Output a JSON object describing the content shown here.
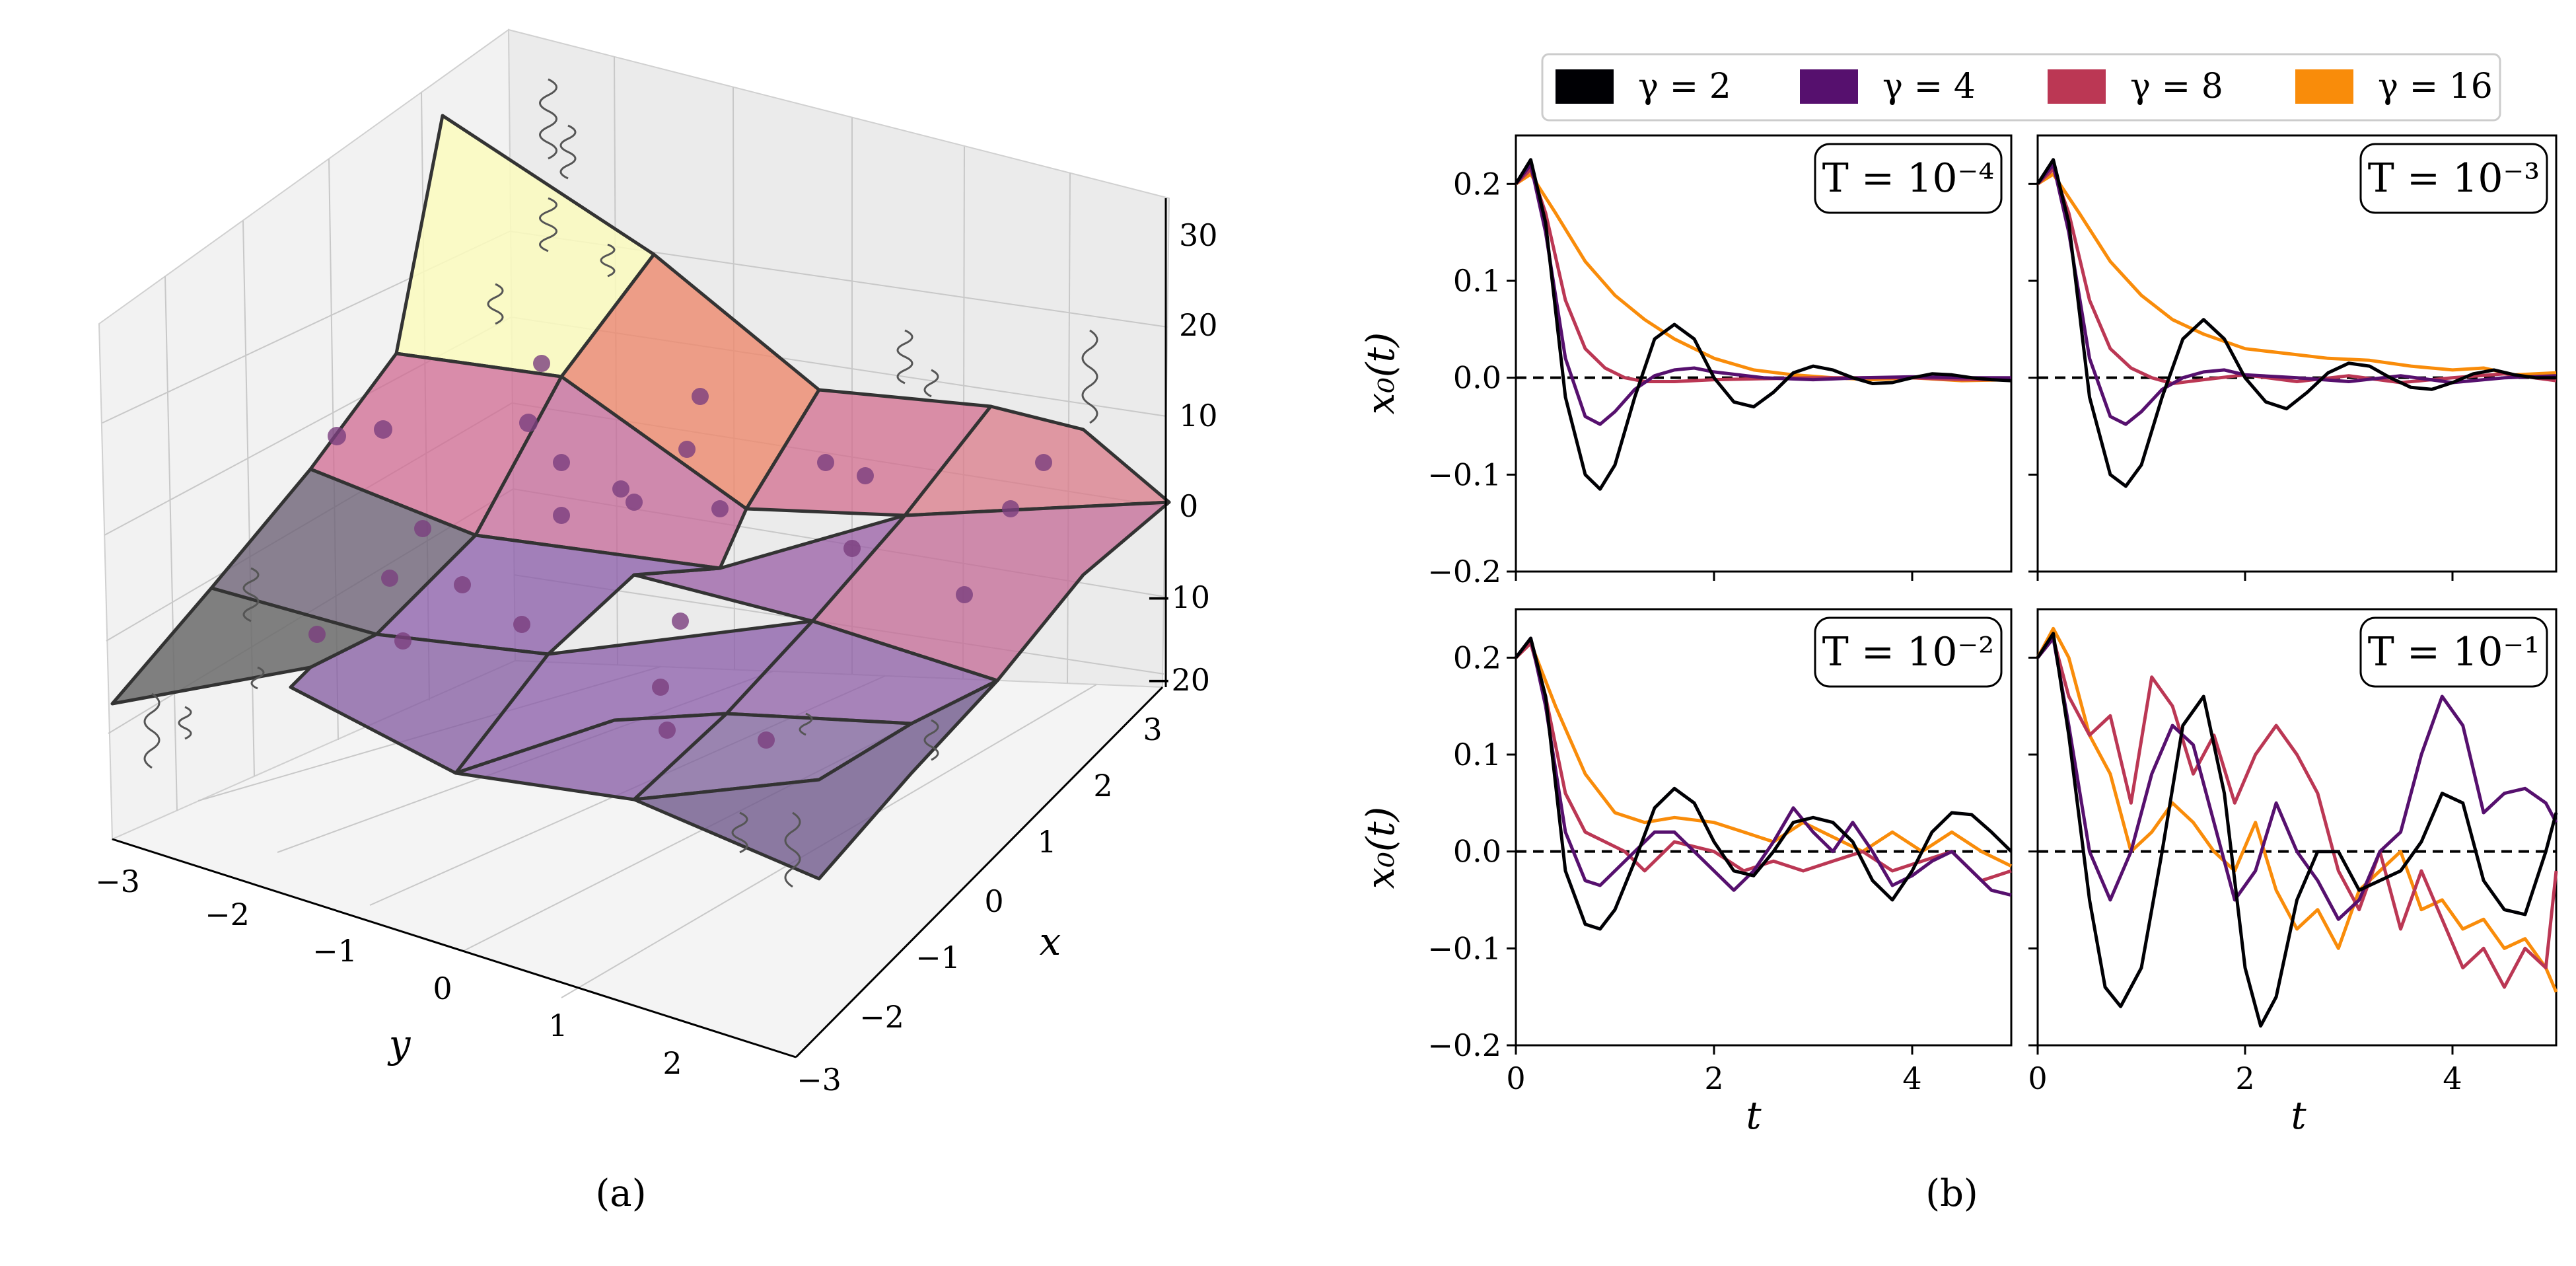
{
  "panel_a": {
    "caption": "(a)",
    "x_label": "x",
    "y_label": "y",
    "x_ticks": [
      "3",
      "2",
      "1",
      "0",
      "−1",
      "−2",
      "−3"
    ],
    "y_ticks": [
      "−3",
      "−2",
      "−1",
      "0",
      "1",
      "2"
    ],
    "z_ticks": [
      "30",
      "20",
      "10",
      "0",
      "−10",
      "−20"
    ],
    "surface_colors": {
      "high": "#fbfbbe",
      "upper": "#ee8a6e",
      "mid": "#d06a92",
      "low": "#8a5ba8",
      "lowest": "#6b6b6b"
    }
  },
  "panel_b": {
    "caption": "(b)",
    "legend": [
      {
        "label": "γ = 2",
        "color": "#000004"
      },
      {
        "label": "γ = 4",
        "color": "#56106e"
      },
      {
        "label": "γ = 8",
        "color": "#bb3754"
      },
      {
        "label": "γ = 16",
        "color": "#f98c0a"
      }
    ],
    "x_label": "t",
    "y_label": "x₀(t)",
    "x_ticks": [
      "0",
      "2",
      "4"
    ],
    "y_ticks": [
      "0.2",
      "0.1",
      "0.0",
      "−0.1",
      "−0.2"
    ]
  },
  "chart_data": [
    {
      "type": "surface3d",
      "xlabel": "x",
      "ylabel": "y",
      "xlim": [
        -3,
        3
      ],
      "ylim": [
        -3,
        3
      ],
      "zlim": [
        -20,
        30
      ],
      "grid": true
    },
    {
      "type": "line",
      "panel": "T = 10⁻⁴",
      "xlim": [
        0,
        5
      ],
      "ylim": [
        -0.2,
        0.25
      ],
      "reference_line": 0.0,
      "series": [
        {
          "name": "γ = 2",
          "x": [
            0,
            0.15,
            0.3,
            0.5,
            0.7,
            0.85,
            1.0,
            1.2,
            1.4,
            1.6,
            1.8,
            2.0,
            2.2,
            2.4,
            2.6,
            2.8,
            3.0,
            3.2,
            3.4,
            3.6,
            3.8,
            4.0,
            4.2,
            4.4,
            4.6,
            4.8,
            5.0
          ],
          "y": [
            0.2,
            0.225,
            0.16,
            -0.02,
            -0.1,
            -0.115,
            -0.09,
            -0.02,
            0.04,
            0.055,
            0.04,
            0.0,
            -0.025,
            -0.03,
            -0.015,
            0.005,
            0.012,
            0.008,
            0.0,
            -0.006,
            -0.005,
            0.0,
            0.004,
            0.003,
            0.0,
            -0.002,
            -0.003
          ]
        },
        {
          "name": "γ = 4",
          "x": [
            0,
            0.15,
            0.3,
            0.5,
            0.7,
            0.85,
            1.0,
            1.2,
            1.4,
            1.6,
            1.8,
            2.0,
            2.5,
            3.0,
            3.5,
            4.0,
            4.5,
            5.0
          ],
          "y": [
            0.2,
            0.22,
            0.15,
            0.02,
            -0.04,
            -0.048,
            -0.035,
            -0.012,
            0.002,
            0.008,
            0.01,
            0.006,
            0.0,
            -0.002,
            0.0,
            0.001,
            0.0,
            0.0
          ]
        },
        {
          "name": "γ = 8",
          "x": [
            0,
            0.15,
            0.3,
            0.5,
            0.7,
            0.9,
            1.1,
            1.3,
            1.6,
            2.0,
            2.5,
            3.0,
            3.5,
            4.0,
            4.5,
            5.0
          ],
          "y": [
            0.2,
            0.215,
            0.17,
            0.08,
            0.03,
            0.01,
            0.0,
            -0.004,
            -0.004,
            -0.002,
            -0.001,
            0.0,
            0.0,
            0.0,
            -0.002,
            -0.002
          ]
        },
        {
          "name": "γ = 16",
          "x": [
            0,
            0.15,
            0.4,
            0.7,
            1.0,
            1.3,
            1.6,
            2.0,
            2.4,
            2.8,
            3.2,
            3.6,
            4.0,
            4.5,
            5.0
          ],
          "y": [
            0.2,
            0.21,
            0.17,
            0.12,
            0.085,
            0.06,
            0.04,
            0.02,
            0.008,
            0.003,
            0.0,
            -0.002,
            0.0,
            -0.003,
            -0.002
          ]
        }
      ]
    },
    {
      "type": "line",
      "panel": "T = 10⁻³",
      "xlim": [
        0,
        5
      ],
      "ylim": [
        -0.2,
        0.25
      ],
      "reference_line": 0.0,
      "series": [
        {
          "name": "γ = 2",
          "x": [
            0,
            0.15,
            0.3,
            0.5,
            0.7,
            0.85,
            1.0,
            1.2,
            1.4,
            1.6,
            1.8,
            2.0,
            2.2,
            2.4,
            2.6,
            2.8,
            3.0,
            3.2,
            3.4,
            3.6,
            3.8,
            4.0,
            4.2,
            4.4,
            4.6,
            4.8,
            5.0
          ],
          "y": [
            0.2,
            0.225,
            0.16,
            -0.02,
            -0.1,
            -0.112,
            -0.09,
            -0.02,
            0.04,
            0.06,
            0.04,
            0.0,
            -0.025,
            -0.032,
            -0.015,
            0.005,
            0.015,
            0.012,
            0.0,
            -0.01,
            -0.012,
            -0.005,
            0.004,
            0.008,
            0.003,
            0.0,
            0.0
          ]
        },
        {
          "name": "γ = 4",
          "x": [
            0,
            0.15,
            0.3,
            0.5,
            0.7,
            0.85,
            1.0,
            1.2,
            1.4,
            1.6,
            1.8,
            2.0,
            2.5,
            3.0,
            3.5,
            4.0,
            4.5,
            5.0
          ],
          "y": [
            0.2,
            0.22,
            0.15,
            0.02,
            -0.04,
            -0.048,
            -0.035,
            -0.012,
            0.0,
            0.006,
            0.008,
            0.003,
            0.0,
            -0.004,
            0.002,
            -0.005,
            0.0,
            0.002
          ]
        },
        {
          "name": "γ = 8",
          "x": [
            0,
            0.15,
            0.3,
            0.5,
            0.7,
            0.9,
            1.1,
            1.3,
            1.6,
            2.0,
            2.5,
            3.0,
            3.5,
            4.0,
            4.5,
            5.0
          ],
          "y": [
            0.2,
            0.215,
            0.17,
            0.08,
            0.03,
            0.01,
            0.0,
            -0.006,
            -0.002,
            0.003,
            -0.004,
            0.002,
            -0.005,
            0.0,
            0.004,
            -0.003
          ]
        },
        {
          "name": "γ = 16",
          "x": [
            0,
            0.15,
            0.4,
            0.7,
            1.0,
            1.3,
            1.6,
            2.0,
            2.4,
            2.8,
            3.2,
            3.6,
            4.0,
            4.3,
            4.6,
            5.0
          ],
          "y": [
            0.2,
            0.21,
            0.17,
            0.12,
            0.085,
            0.06,
            0.045,
            0.03,
            0.025,
            0.02,
            0.018,
            0.012,
            0.008,
            0.01,
            0.003,
            0.005
          ]
        }
      ]
    },
    {
      "type": "line",
      "panel": "T = 10⁻²",
      "xlim": [
        0,
        5
      ],
      "ylim": [
        -0.2,
        0.25
      ],
      "reference_line": 0.0,
      "series": [
        {
          "name": "γ = 2",
          "x": [
            0,
            0.15,
            0.3,
            0.5,
            0.7,
            0.85,
            1.0,
            1.2,
            1.4,
            1.6,
            1.8,
            2.0,
            2.2,
            2.4,
            2.6,
            2.8,
            3.0,
            3.2,
            3.4,
            3.6,
            3.8,
            4.0,
            4.2,
            4.4,
            4.6,
            4.8,
            5.0
          ],
          "y": [
            0.2,
            0.22,
            0.16,
            -0.02,
            -0.075,
            -0.08,
            -0.06,
            -0.01,
            0.045,
            0.065,
            0.05,
            0.01,
            -0.02,
            -0.025,
            0.0,
            0.03,
            0.035,
            0.03,
            0.01,
            -0.03,
            -0.05,
            -0.02,
            0.02,
            0.04,
            0.038,
            0.02,
            0.0
          ]
        },
        {
          "name": "γ = 4",
          "x": [
            0,
            0.15,
            0.3,
            0.5,
            0.7,
            0.85,
            1.0,
            1.2,
            1.4,
            1.6,
            1.8,
            2.0,
            2.2,
            2.4,
            2.6,
            2.8,
            3.0,
            3.2,
            3.4,
            3.6,
            3.8,
            4.0,
            4.2,
            4.4,
            4.6,
            4.8,
            5.0
          ],
          "y": [
            0.2,
            0.22,
            0.15,
            0.02,
            -0.03,
            -0.035,
            -0.02,
            0.0,
            0.02,
            0.02,
            0.0,
            -0.02,
            -0.04,
            -0.02,
            0.01,
            0.045,
            0.02,
            0.0,
            0.03,
            0.0,
            -0.035,
            -0.025,
            -0.01,
            0.0,
            -0.02,
            -0.04,
            -0.045
          ]
        },
        {
          "name": "γ = 8",
          "x": [
            0,
            0.15,
            0.3,
            0.5,
            0.7,
            0.9,
            1.1,
            1.3,
            1.6,
            2.0,
            2.3,
            2.6,
            2.9,
            3.2,
            3.5,
            3.8,
            4.1,
            4.4,
            4.7,
            5.0
          ],
          "y": [
            0.2,
            0.215,
            0.16,
            0.06,
            0.02,
            0.01,
            0.0,
            -0.02,
            0.01,
            0.0,
            -0.02,
            -0.01,
            -0.02,
            -0.01,
            0.0,
            -0.02,
            -0.01,
            0.0,
            -0.03,
            -0.02
          ]
        },
        {
          "name": "γ = 16",
          "x": [
            0,
            0.15,
            0.4,
            0.7,
            1.0,
            1.3,
            1.6,
            2.0,
            2.3,
            2.6,
            2.9,
            3.2,
            3.5,
            3.8,
            4.1,
            4.4,
            4.7,
            5.0
          ],
          "y": [
            0.2,
            0.215,
            0.15,
            0.08,
            0.04,
            0.03,
            0.035,
            0.03,
            0.02,
            0.01,
            0.03,
            0.015,
            0.0,
            0.02,
            0.0,
            0.02,
            0.0,
            -0.015
          ]
        }
      ]
    },
    {
      "type": "line",
      "panel": "T = 10⁻¹",
      "xlim": [
        0,
        5
      ],
      "ylim": [
        -0.2,
        0.25
      ],
      "reference_line": 0.0,
      "series": [
        {
          "name": "γ = 2",
          "x": [
            0,
            0.15,
            0.3,
            0.5,
            0.65,
            0.8,
            1.0,
            1.2,
            1.4,
            1.6,
            1.8,
            2.0,
            2.15,
            2.3,
            2.5,
            2.7,
            2.9,
            3.1,
            3.3,
            3.5,
            3.7,
            3.9,
            4.1,
            4.3,
            4.5,
            4.7,
            4.9,
            5.0
          ],
          "y": [
            0.2,
            0.225,
            0.12,
            -0.05,
            -0.14,
            -0.16,
            -0.12,
            0.0,
            0.13,
            0.16,
            0.06,
            -0.12,
            -0.18,
            -0.15,
            -0.05,
            0.0,
            0.0,
            -0.04,
            -0.03,
            -0.02,
            0.01,
            0.06,
            0.05,
            -0.03,
            -0.06,
            -0.065,
            0.0,
            0.04
          ]
        },
        {
          "name": "γ = 4",
          "x": [
            0,
            0.15,
            0.3,
            0.5,
            0.7,
            0.9,
            1.1,
            1.3,
            1.5,
            1.7,
            1.9,
            2.1,
            2.3,
            2.5,
            2.7,
            2.9,
            3.1,
            3.3,
            3.5,
            3.7,
            3.9,
            4.1,
            4.3,
            4.5,
            4.7,
            4.9,
            5.0
          ],
          "y": [
            0.2,
            0.22,
            0.13,
            0.0,
            -0.05,
            0.0,
            0.08,
            0.13,
            0.11,
            0.03,
            -0.05,
            -0.02,
            0.05,
            0.0,
            -0.03,
            -0.07,
            -0.05,
            0.0,
            0.02,
            0.1,
            0.16,
            0.13,
            0.04,
            0.06,
            0.065,
            0.05,
            0.03
          ]
        },
        {
          "name": "γ = 8",
          "x": [
            0,
            0.15,
            0.3,
            0.5,
            0.7,
            0.9,
            1.1,
            1.3,
            1.5,
            1.7,
            1.9,
            2.1,
            2.3,
            2.5,
            2.7,
            2.9,
            3.1,
            3.3,
            3.5,
            3.7,
            3.9,
            4.1,
            4.3,
            4.5,
            4.7,
            4.9,
            5.0
          ],
          "y": [
            0.2,
            0.22,
            0.16,
            0.12,
            0.14,
            0.05,
            0.18,
            0.15,
            0.08,
            0.12,
            0.05,
            0.1,
            0.13,
            0.1,
            0.06,
            -0.02,
            -0.06,
            0.0,
            -0.08,
            -0.02,
            -0.07,
            -0.12,
            -0.1,
            -0.14,
            -0.1,
            -0.12,
            -0.02
          ]
        },
        {
          "name": "γ = 16",
          "x": [
            0,
            0.15,
            0.3,
            0.5,
            0.7,
            0.9,
            1.1,
            1.3,
            1.5,
            1.7,
            1.9,
            2.1,
            2.3,
            2.5,
            2.7,
            2.9,
            3.1,
            3.3,
            3.5,
            3.7,
            3.9,
            4.1,
            4.3,
            4.5,
            4.7,
            4.9,
            5.0
          ],
          "y": [
            0.2,
            0.23,
            0.2,
            0.12,
            0.08,
            0.0,
            0.02,
            0.05,
            0.03,
            0.0,
            -0.02,
            0.03,
            -0.04,
            -0.08,
            -0.06,
            -0.1,
            -0.04,
            -0.02,
            0.0,
            -0.06,
            -0.05,
            -0.08,
            -0.07,
            -0.1,
            -0.09,
            -0.12,
            -0.145
          ]
        }
      ]
    }
  ]
}
